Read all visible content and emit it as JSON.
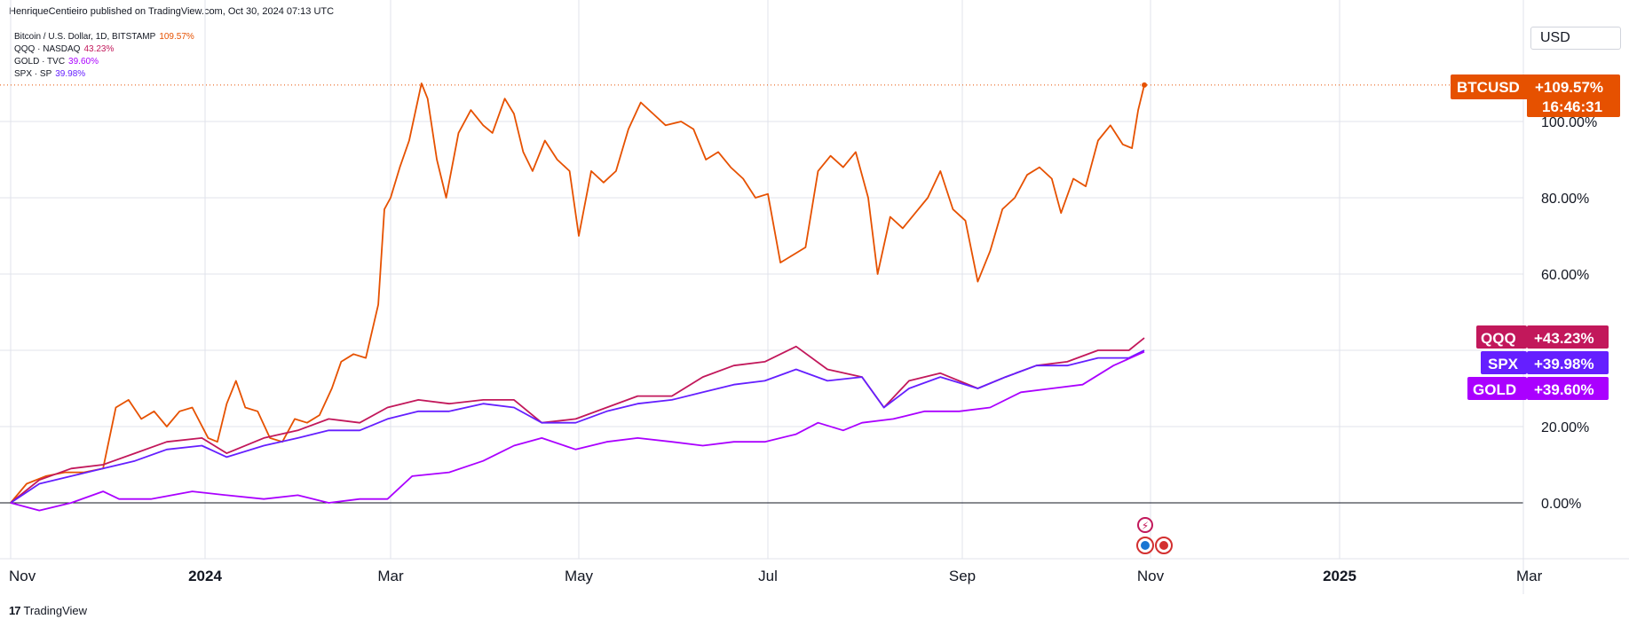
{
  "publisher": "HenriqueCentieiro published on TradingView.com, Oct 30, 2024 07:13 UTC",
  "legend": [
    {
      "label": "Bitcoin / U.S. Dollar, 1D, BITSTAMP",
      "value": "109.57%",
      "color": "#e65100"
    },
    {
      "label": "QQQ · NASDAQ",
      "value": "43.23%",
      "color": "#c2185b"
    },
    {
      "label": "GOLD · TVC",
      "value": "39.60%",
      "color": "#aa00ff"
    },
    {
      "label": "SPX · SP",
      "value": "39.98%",
      "color": "#651fff"
    }
  ],
  "currency": "USD",
  "footer": {
    "mark": "17",
    "brand": "TradingView"
  },
  "tags": {
    "btc": {
      "name": "BTCUSD",
      "value": "+109.57%",
      "countdown": "16:46:31",
      "color": "#e65100"
    },
    "qqq": {
      "name": "QQQ",
      "value": "+43.23%",
      "color": "#c2185b"
    },
    "spx": {
      "name": "SPX",
      "value": "+39.98%",
      "color": "#651fff"
    },
    "gold": {
      "name": "GOLD",
      "value": "+39.60%",
      "color": "#aa00ff"
    }
  },
  "chart_data": {
    "type": "line",
    "y_unit": "%",
    "ylim": [
      -5,
      116
    ],
    "yticks": [
      "100.00%",
      "80.00%",
      "60.00%",
      "20.00%",
      "0.00%"
    ],
    "ytick_values": [
      100,
      80,
      60,
      20,
      0
    ],
    "xticks": [
      "Nov",
      "2024",
      "Mar",
      "May",
      "Jul",
      "Sep",
      "Nov",
      "2025",
      "Mar"
    ],
    "xtick_dates": [
      "2023-11-01",
      "2024-01-01",
      "2024-03-01",
      "2024-05-01",
      "2024-07-01",
      "2024-09-01",
      "2024-11-01",
      "2025-01-01",
      "2025-03-01"
    ],
    "xlim": [
      "2023-11-01",
      "2025-03-01"
    ],
    "grid": true,
    "series": [
      {
        "name": "Bitcoin / U.S. Dollar",
        "color": "#e65100",
        "points": [
          [
            "2023-11-01",
            0
          ],
          [
            "2023-11-06",
            5
          ],
          [
            "2023-11-12",
            7
          ],
          [
            "2023-11-18",
            8
          ],
          [
            "2023-11-24",
            8
          ],
          [
            "2023-11-30",
            9
          ],
          [
            "2023-12-04",
            25
          ],
          [
            "2023-12-08",
            27
          ],
          [
            "2023-12-12",
            22
          ],
          [
            "2023-12-16",
            24
          ],
          [
            "2023-12-20",
            20
          ],
          [
            "2023-12-24",
            24
          ],
          [
            "2023-12-28",
            25
          ],
          [
            "2024-01-02",
            17
          ],
          [
            "2024-01-05",
            16
          ],
          [
            "2024-01-08",
            26
          ],
          [
            "2024-01-11",
            32
          ],
          [
            "2024-01-14",
            25
          ],
          [
            "2024-01-18",
            24
          ],
          [
            "2024-01-22",
            17
          ],
          [
            "2024-01-26",
            16
          ],
          [
            "2024-01-30",
            22
          ],
          [
            "2024-02-03",
            21
          ],
          [
            "2024-02-07",
            23
          ],
          [
            "2024-02-11",
            30
          ],
          [
            "2024-02-14",
            37
          ],
          [
            "2024-02-18",
            39
          ],
          [
            "2024-02-22",
            38
          ],
          [
            "2024-02-26",
            52
          ],
          [
            "2024-02-28",
            77
          ],
          [
            "2024-03-01",
            80
          ],
          [
            "2024-03-04",
            88
          ],
          [
            "2024-03-07",
            95
          ],
          [
            "2024-03-11",
            110
          ],
          [
            "2024-03-13",
            106
          ],
          [
            "2024-03-16",
            90
          ],
          [
            "2024-03-19",
            80
          ],
          [
            "2024-03-23",
            97
          ],
          [
            "2024-03-27",
            103
          ],
          [
            "2024-03-31",
            99
          ],
          [
            "2024-04-03",
            97
          ],
          [
            "2024-04-07",
            106
          ],
          [
            "2024-04-10",
            102
          ],
          [
            "2024-04-13",
            92
          ],
          [
            "2024-04-16",
            87
          ],
          [
            "2024-04-20",
            95
          ],
          [
            "2024-04-24",
            90
          ],
          [
            "2024-04-28",
            87
          ],
          [
            "2024-05-01",
            70
          ],
          [
            "2024-05-05",
            87
          ],
          [
            "2024-05-09",
            84
          ],
          [
            "2024-05-13",
            87
          ],
          [
            "2024-05-17",
            98
          ],
          [
            "2024-05-21",
            105
          ],
          [
            "2024-05-25",
            102
          ],
          [
            "2024-05-29",
            99
          ],
          [
            "2024-06-03",
            100
          ],
          [
            "2024-06-07",
            98
          ],
          [
            "2024-06-11",
            90
          ],
          [
            "2024-06-15",
            92
          ],
          [
            "2024-06-19",
            88
          ],
          [
            "2024-06-23",
            85
          ],
          [
            "2024-06-27",
            80
          ],
          [
            "2024-07-01",
            81
          ],
          [
            "2024-07-05",
            63
          ],
          [
            "2024-07-09",
            65
          ],
          [
            "2024-07-13",
            67
          ],
          [
            "2024-07-17",
            87
          ],
          [
            "2024-07-21",
            91
          ],
          [
            "2024-07-25",
            88
          ],
          [
            "2024-07-29",
            92
          ],
          [
            "2024-08-02",
            80
          ],
          [
            "2024-08-05",
            60
          ],
          [
            "2024-08-09",
            75
          ],
          [
            "2024-08-13",
            72
          ],
          [
            "2024-08-17",
            76
          ],
          [
            "2024-08-21",
            80
          ],
          [
            "2024-08-25",
            87
          ],
          [
            "2024-08-29",
            77
          ],
          [
            "2024-09-02",
            74
          ],
          [
            "2024-09-06",
            58
          ],
          [
            "2024-09-10",
            66
          ],
          [
            "2024-09-14",
            77
          ],
          [
            "2024-09-18",
            80
          ],
          [
            "2024-09-22",
            86
          ],
          [
            "2024-09-26",
            88
          ],
          [
            "2024-09-30",
            85
          ],
          [
            "2024-10-03",
            76
          ],
          [
            "2024-10-07",
            85
          ],
          [
            "2024-10-11",
            83
          ],
          [
            "2024-10-15",
            95
          ],
          [
            "2024-10-19",
            99
          ],
          [
            "2024-10-23",
            94
          ],
          [
            "2024-10-26",
            93
          ],
          [
            "2024-10-28",
            103
          ],
          [
            "2024-10-30",
            109.57
          ]
        ]
      },
      {
        "name": "QQQ",
        "color": "#c2185b",
        "points": [
          [
            "2023-11-01",
            0
          ],
          [
            "2023-11-10",
            6
          ],
          [
            "2023-11-20",
            9
          ],
          [
            "2023-11-30",
            10
          ],
          [
            "2023-12-10",
            13
          ],
          [
            "2023-12-20",
            16
          ],
          [
            "2023-12-31",
            17
          ],
          [
            "2024-01-08",
            13
          ],
          [
            "2024-01-20",
            17
          ],
          [
            "2024-01-31",
            19
          ],
          [
            "2024-02-10",
            22
          ],
          [
            "2024-02-20",
            21
          ],
          [
            "2024-02-29",
            25
          ],
          [
            "2024-03-10",
            27
          ],
          [
            "2024-03-20",
            26
          ],
          [
            "2024-03-31",
            27
          ],
          [
            "2024-04-10",
            27
          ],
          [
            "2024-04-19",
            21
          ],
          [
            "2024-04-30",
            22
          ],
          [
            "2024-05-10",
            25
          ],
          [
            "2024-05-20",
            28
          ],
          [
            "2024-05-31",
            28
          ],
          [
            "2024-06-10",
            33
          ],
          [
            "2024-06-20",
            36
          ],
          [
            "2024-06-30",
            37
          ],
          [
            "2024-07-10",
            41
          ],
          [
            "2024-07-20",
            35
          ],
          [
            "2024-07-31",
            33
          ],
          [
            "2024-08-07",
            25
          ],
          [
            "2024-08-15",
            32
          ],
          [
            "2024-08-25",
            34
          ],
          [
            "2024-09-06",
            30
          ],
          [
            "2024-09-15",
            33
          ],
          [
            "2024-09-25",
            36
          ],
          [
            "2024-10-05",
            37
          ],
          [
            "2024-10-15",
            40
          ],
          [
            "2024-10-25",
            40
          ],
          [
            "2024-10-30",
            43.23
          ]
        ]
      },
      {
        "name": "SPX",
        "color": "#651fff",
        "points": [
          [
            "2023-11-01",
            0
          ],
          [
            "2023-11-10",
            5
          ],
          [
            "2023-11-20",
            7
          ],
          [
            "2023-11-30",
            9
          ],
          [
            "2023-12-10",
            11
          ],
          [
            "2023-12-20",
            14
          ],
          [
            "2023-12-31",
            15
          ],
          [
            "2024-01-08",
            12
          ],
          [
            "2024-01-20",
            15
          ],
          [
            "2024-01-31",
            17
          ],
          [
            "2024-02-10",
            19
          ],
          [
            "2024-02-20",
            19
          ],
          [
            "2024-02-29",
            22
          ],
          [
            "2024-03-10",
            24
          ],
          [
            "2024-03-20",
            24
          ],
          [
            "2024-03-31",
            26
          ],
          [
            "2024-04-10",
            25
          ],
          [
            "2024-04-19",
            21
          ],
          [
            "2024-04-30",
            21
          ],
          [
            "2024-05-10",
            24
          ],
          [
            "2024-05-20",
            26
          ],
          [
            "2024-05-31",
            27
          ],
          [
            "2024-06-10",
            29
          ],
          [
            "2024-06-20",
            31
          ],
          [
            "2024-06-30",
            32
          ],
          [
            "2024-07-10",
            35
          ],
          [
            "2024-07-20",
            32
          ],
          [
            "2024-07-31",
            33
          ],
          [
            "2024-08-07",
            25
          ],
          [
            "2024-08-15",
            30
          ],
          [
            "2024-08-25",
            33
          ],
          [
            "2024-09-06",
            30
          ],
          [
            "2024-09-15",
            33
          ],
          [
            "2024-09-25",
            36
          ],
          [
            "2024-10-05",
            36
          ],
          [
            "2024-10-15",
            38
          ],
          [
            "2024-10-25",
            38
          ],
          [
            "2024-10-30",
            39.98
          ]
        ]
      },
      {
        "name": "GOLD",
        "color": "#aa00ff",
        "points": [
          [
            "2023-11-01",
            0
          ],
          [
            "2023-11-10",
            -2
          ],
          [
            "2023-11-20",
            0
          ],
          [
            "2023-11-30",
            3
          ],
          [
            "2023-12-05",
            1
          ],
          [
            "2023-12-15",
            1
          ],
          [
            "2023-12-28",
            3
          ],
          [
            "2024-01-08",
            2
          ],
          [
            "2024-01-20",
            1
          ],
          [
            "2024-01-31",
            2
          ],
          [
            "2024-02-10",
            0
          ],
          [
            "2024-02-20",
            1
          ],
          [
            "2024-02-29",
            1
          ],
          [
            "2024-03-08",
            7
          ],
          [
            "2024-03-20",
            8
          ],
          [
            "2024-03-31",
            11
          ],
          [
            "2024-04-10",
            15
          ],
          [
            "2024-04-19",
            17
          ],
          [
            "2024-04-30",
            14
          ],
          [
            "2024-05-10",
            16
          ],
          [
            "2024-05-20",
            17
          ],
          [
            "2024-05-31",
            16
          ],
          [
            "2024-06-10",
            15
          ],
          [
            "2024-06-20",
            16
          ],
          [
            "2024-06-30",
            16
          ],
          [
            "2024-07-10",
            18
          ],
          [
            "2024-07-17",
            21
          ],
          [
            "2024-07-25",
            19
          ],
          [
            "2024-07-31",
            21
          ],
          [
            "2024-08-10",
            22
          ],
          [
            "2024-08-20",
            24
          ],
          [
            "2024-08-31",
            24
          ],
          [
            "2024-09-10",
            25
          ],
          [
            "2024-09-20",
            29
          ],
          [
            "2024-09-30",
            30
          ],
          [
            "2024-10-10",
            31
          ],
          [
            "2024-10-20",
            36
          ],
          [
            "2024-10-30",
            39.6
          ]
        ]
      }
    ]
  }
}
